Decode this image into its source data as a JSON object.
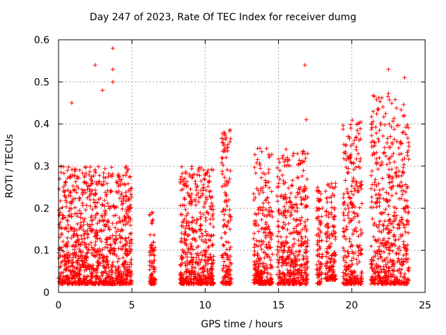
{
  "chart_data": {
    "type": "scatter",
    "title": "Day 247 of 2023, Rate Of TEC Index for receiver dumg",
    "xlabel": "GPS time / hours",
    "ylabel": "ROTI / TECUs",
    "xlim": [
      0,
      25
    ],
    "ylim": [
      0,
      0.6
    ],
    "xticks": [
      "0",
      "5",
      "10",
      "15",
      "20",
      "25"
    ],
    "yticks": [
      "0",
      "0.1",
      "0.2",
      "0.3",
      "0.4",
      "0.5",
      "0.6"
    ],
    "grid": true,
    "legend": "none",
    "marker": "+",
    "color": "#ff0000",
    "series": [
      {
        "clusters": [
          {
            "x": [
              0.0,
              5.0
            ],
            "y_typical": [
              0.02,
              0.3
            ]
          },
          {
            "x": [
              6.2,
              6.6
            ],
            "y_typical": [
              0.02,
              0.19
            ]
          },
          {
            "x": [
              8.3,
              10.6
            ],
            "y_typical": [
              0.02,
              0.3
            ]
          },
          {
            "x": [
              11.1,
              11.8
            ],
            "y_typical": [
              0.02,
              0.39
            ]
          },
          {
            "x": [
              13.3,
              14.6
            ],
            "y_typical": [
              0.02,
              0.35
            ]
          },
          {
            "x": [
              14.9,
              17.0
            ],
            "y_typical": [
              0.02,
              0.34
            ]
          },
          {
            "x": [
              17.6,
              18.0
            ],
            "y_typical": [
              0.02,
              0.25
            ]
          },
          {
            "x": [
              18.2,
              18.9
            ],
            "y_typical": [
              0.03,
              0.26
            ]
          },
          {
            "x": [
              19.4,
              20.7
            ],
            "y_typical": [
              0.02,
              0.41
            ]
          },
          {
            "x": [
              21.3,
              23.9
            ],
            "y_typical": [
              0.02,
              0.48
            ]
          }
        ],
        "peaks": [
          {
            "x": 0.9,
            "y": 0.45
          },
          {
            "x": 2.5,
            "y": 0.54
          },
          {
            "x": 3.0,
            "y": 0.48
          },
          {
            "x": 3.7,
            "y": 0.58
          },
          {
            "x": 3.7,
            "y": 0.53
          },
          {
            "x": 3.7,
            "y": 0.5
          },
          {
            "x": 16.8,
            "y": 0.54
          },
          {
            "x": 16.9,
            "y": 0.41
          },
          {
            "x": 22.5,
            "y": 0.53
          },
          {
            "x": 23.6,
            "y": 0.51
          },
          {
            "x": 23.6,
            "y": 0.42
          }
        ]
      }
    ]
  }
}
